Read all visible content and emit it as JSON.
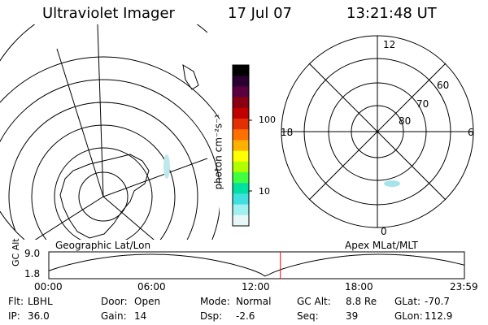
{
  "header": {
    "instrument": "Ultraviolet Imager",
    "date": "17 Jul 07",
    "time": "13:21:48 UT"
  },
  "colorbar": {
    "unit_label": "photon cm⁻²s⁻¹",
    "tick_labels": [
      "100",
      "10"
    ],
    "colors_top_to_bottom": [
      "#000000",
      "#2a0030",
      "#5a0040",
      "#8a0010",
      "#c00000",
      "#e23000",
      "#ff7000",
      "#ffb000",
      "#ffff00",
      "#b0ff00",
      "#40ff40",
      "#00e0a0",
      "#40e0e0",
      "#a0f0f0",
      "#e8f8f8"
    ]
  },
  "left_map": {
    "caption": "Geographic Lat/Lon"
  },
  "right_map": {
    "caption": "Apex MLat/MLT",
    "mlt_labels": {
      "top": "12",
      "left": "18",
      "right": "6",
      "bottom": "0"
    },
    "mlat_labels": [
      "60",
      "70",
      "80"
    ]
  },
  "altitude_plot": {
    "ylabel": "GC Alt",
    "y_ticks": [
      "9.0",
      "1.8"
    ],
    "x_ticks": [
      "00:00",
      "06:00",
      "12:00",
      "18:00",
      "23:59"
    ],
    "current_time_marker": "13:21:48",
    "marker_color": "#ff0000"
  },
  "status": {
    "row1": [
      {
        "key": "Flt:",
        "value": "LBHL"
      },
      {
        "key": "Door:",
        "value": "Open"
      },
      {
        "key": "Mode:",
        "value": "Normal"
      },
      {
        "key": "GC Alt:",
        "value": "8.8 Re"
      },
      {
        "key": "GLat:",
        "value": "-70.7"
      }
    ],
    "row2": [
      {
        "key": "IP:",
        "value": "36.0"
      },
      {
        "key": "Gain:",
        "value": "14"
      },
      {
        "key": "Dsp:",
        "value": "-2.6"
      },
      {
        "key": "Seq:",
        "value": "39"
      },
      {
        "key": "GLon:",
        "value": "112.9"
      }
    ]
  }
}
